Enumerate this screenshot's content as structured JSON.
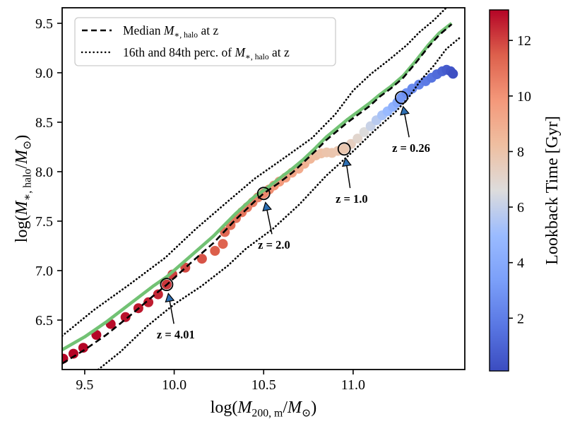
{
  "chart_data": {
    "type": "scatter",
    "title": "",
    "xlabel": "log($M$_{200, m}/$M$_{⊙})",
    "ylabel": "log($M$_{∗, halo}/$M$_{⊙})",
    "xlim": [
      9.374,
      11.624
    ],
    "ylim": [
      6.0,
      9.657
    ],
    "grid": false,
    "xticks": [
      {
        "v": 9.5,
        "label": "9.5"
      },
      {
        "v": 10.0,
        "label": "10.0"
      },
      {
        "v": 10.5,
        "label": "10.5"
      },
      {
        "v": 11.0,
        "label": "11.0"
      }
    ],
    "yticks": [
      {
        "v": 6.5,
        "label": "6.5"
      },
      {
        "v": 7.0,
        "label": "7.0"
      },
      {
        "v": 7.5,
        "label": "7.5"
      },
      {
        "v": 8.0,
        "label": "8.0"
      },
      {
        "v": 8.5,
        "label": "8.5"
      },
      {
        "v": 9.0,
        "label": "9.0"
      },
      {
        "v": 9.5,
        "label": "9.5"
      }
    ],
    "legend": {
      "position": "upper left",
      "items": [
        {
          "sample": "dashed",
          "label": "Median $M$_{∗, halo} at z"
        },
        {
          "sample": "dotted",
          "label": "16th and 84th perc. of $M$_{∗, halo} at z"
        }
      ]
    },
    "colorbar": {
      "label": "Lookback Time [Gyr]",
      "vmin": 0.1,
      "vmax": 13.1,
      "ticks": [
        {
          "v": 2,
          "label": "2"
        },
        {
          "v": 4,
          "label": "4"
        },
        {
          "v": 6,
          "label": "6"
        },
        {
          "v": 8,
          "label": "8"
        },
        {
          "v": 10,
          "label": "10"
        },
        {
          "v": 12,
          "label": "12"
        }
      ],
      "cmap": "coolwarm",
      "cmap_stops": [
        {
          "t": 0.0,
          "c": "#3b4cc0"
        },
        {
          "t": 0.125,
          "c": "#5977e3"
        },
        {
          "t": 0.25,
          "c": "#7b9ff9"
        },
        {
          "t": 0.375,
          "c": "#9abbff"
        },
        {
          "t": 0.5,
          "c": "#dddcdc"
        },
        {
          "t": 0.625,
          "c": "#efbfa1"
        },
        {
          "t": 0.75,
          "c": "#f4987a"
        },
        {
          "t": 0.875,
          "c": "#dd604c"
        },
        {
          "t": 1.0,
          "c": "#b40426"
        }
      ]
    },
    "series": [
      {
        "name": "median-mstar-halo",
        "style": "dashed",
        "color": "#000000",
        "width": 2.6,
        "points": [
          [
            9.374,
            6.06
          ],
          [
            9.5,
            6.2
          ],
          [
            9.62,
            6.35
          ],
          [
            9.75,
            6.54
          ],
          [
            9.88,
            6.74
          ],
          [
            9.96,
            6.86
          ],
          [
            10.1,
            7.09
          ],
          [
            10.22,
            7.28
          ],
          [
            10.34,
            7.51
          ],
          [
            10.45,
            7.7
          ],
          [
            10.5,
            7.78
          ],
          [
            10.58,
            7.88
          ],
          [
            10.66,
            7.99
          ],
          [
            10.72,
            8.09
          ],
          [
            10.79,
            8.21
          ],
          [
            10.85,
            8.32
          ],
          [
            10.91,
            8.41
          ],
          [
            10.97,
            8.5
          ],
          [
            11.03,
            8.58
          ],
          [
            11.09,
            8.66
          ],
          [
            11.15,
            8.76
          ],
          [
            11.21,
            8.84
          ],
          [
            11.28,
            8.95
          ],
          [
            11.35,
            9.1
          ],
          [
            11.42,
            9.26
          ],
          [
            11.48,
            9.38
          ],
          [
            11.55,
            9.49
          ]
        ]
      },
      {
        "name": "percentile-84",
        "style": "dotted",
        "color": "#000000",
        "width": 2.7,
        "points": [
          [
            9.374,
            6.34
          ],
          [
            9.55,
            6.6
          ],
          [
            9.75,
            6.86
          ],
          [
            9.95,
            7.13
          ],
          [
            10.12,
            7.42
          ],
          [
            10.3,
            7.7
          ],
          [
            10.45,
            7.93
          ],
          [
            10.6,
            8.12
          ],
          [
            10.77,
            8.34
          ],
          [
            10.9,
            8.58
          ],
          [
            11.0,
            8.82
          ],
          [
            11.1,
            8.99
          ],
          [
            11.2,
            9.13
          ],
          [
            11.3,
            9.28
          ],
          [
            11.37,
            9.41
          ],
          [
            11.45,
            9.53
          ],
          [
            11.52,
            9.657
          ]
        ]
      },
      {
        "name": "percentile-16",
        "style": "dotted",
        "color": "#000000",
        "width": 2.7,
        "points": [
          [
            9.576,
            6.0
          ],
          [
            9.7,
            6.18
          ],
          [
            9.85,
            6.44
          ],
          [
            10.0,
            6.66
          ],
          [
            10.15,
            6.84
          ],
          [
            10.3,
            7.05
          ],
          [
            10.4,
            7.22
          ],
          [
            10.55,
            7.42
          ],
          [
            10.7,
            7.67
          ],
          [
            10.85,
            7.96
          ],
          [
            10.99,
            8.19
          ],
          [
            11.11,
            8.4
          ],
          [
            11.24,
            8.61
          ],
          [
            11.31,
            8.75
          ],
          [
            11.38,
            8.93
          ],
          [
            11.45,
            9.07
          ],
          [
            11.52,
            9.24
          ],
          [
            11.6,
            9.36
          ]
        ]
      },
      {
        "name": "galaxy-growth-track",
        "style": "solid",
        "color": "#72c274",
        "width": 4.6,
        "points": [
          [
            9.374,
            6.2
          ],
          [
            9.5,
            6.33
          ],
          [
            9.62,
            6.48
          ],
          [
            9.75,
            6.66
          ],
          [
            9.88,
            6.84
          ],
          [
            9.96,
            6.94
          ],
          [
            10.1,
            7.16
          ],
          [
            10.22,
            7.35
          ],
          [
            10.34,
            7.57
          ],
          [
            10.45,
            7.75
          ],
          [
            10.5,
            7.81
          ],
          [
            10.58,
            7.92
          ],
          [
            10.66,
            8.03
          ],
          [
            10.72,
            8.12
          ],
          [
            10.79,
            8.24
          ],
          [
            10.85,
            8.35
          ],
          [
            10.91,
            8.44
          ],
          [
            10.97,
            8.53
          ],
          [
            11.03,
            8.61
          ],
          [
            11.09,
            8.69
          ],
          [
            11.15,
            8.78
          ],
          [
            11.21,
            8.86
          ],
          [
            11.28,
            8.97
          ],
          [
            11.35,
            9.12
          ],
          [
            11.42,
            9.28
          ],
          [
            11.48,
            9.4
          ],
          [
            11.55,
            9.5
          ]
        ]
      }
    ],
    "scatter": {
      "name": "galaxy-snapshots",
      "marker_radius": 7,
      "columns": [
        "log_M200m",
        "log_Mstar_halo",
        "lookback_gyr"
      ],
      "points": [
        [
          9.38,
          6.11,
          13.25
        ],
        [
          9.437,
          6.16,
          13.2
        ],
        [
          9.492,
          6.22,
          13.15
        ],
        [
          9.565,
          6.35,
          13.05
        ],
        [
          9.645,
          6.46,
          12.95
        ],
        [
          9.728,
          6.53,
          12.85
        ],
        [
          9.8,
          6.62,
          12.75
        ],
        [
          9.856,
          6.68,
          12.65
        ],
        [
          9.91,
          6.76,
          12.5
        ],
        [
          9.958,
          6.86,
          12.2
        ],
        [
          9.99,
          6.96,
          12.05
        ],
        [
          10.062,
          7.03,
          11.9
        ],
        [
          10.155,
          7.12,
          11.7
        ],
        [
          10.228,
          7.2,
          11.5
        ],
        [
          10.272,
          7.27,
          11.35
        ],
        [
          10.283,
          7.39,
          11.2
        ],
        [
          10.315,
          7.46,
          11.05
        ],
        [
          10.345,
          7.53,
          10.95
        ],
        [
          10.378,
          7.59,
          10.85
        ],
        [
          10.408,
          7.64,
          10.7
        ],
        [
          10.438,
          7.69,
          10.6
        ],
        [
          10.468,
          7.74,
          10.5
        ],
        [
          10.5,
          7.78,
          10.35
        ],
        [
          10.53,
          7.82,
          10.15
        ],
        [
          10.558,
          7.86,
          9.95
        ],
        [
          10.588,
          7.9,
          9.75
        ],
        [
          10.622,
          7.94,
          9.55
        ],
        [
          10.658,
          7.99,
          9.3
        ],
        [
          10.695,
          8.03,
          9.05
        ],
        [
          10.728,
          8.08,
          8.8
        ],
        [
          10.76,
          8.13,
          8.55
        ],
        [
          10.792,
          8.165,
          8.3
        ],
        [
          10.822,
          8.185,
          8.1
        ],
        [
          10.852,
          8.195,
          7.95
        ],
        [
          10.882,
          8.19,
          7.9
        ],
        [
          10.915,
          8.21,
          7.85
        ],
        [
          10.95,
          8.23,
          7.8
        ],
        [
          10.988,
          8.28,
          7.4
        ],
        [
          11.025,
          8.335,
          7.0
        ],
        [
          11.062,
          8.4,
          6.6
        ],
        [
          11.098,
          8.46,
          6.1
        ],
        [
          11.13,
          8.52,
          5.7
        ],
        [
          11.162,
          8.57,
          5.3
        ],
        [
          11.192,
          8.61,
          4.9
        ],
        [
          11.222,
          8.655,
          4.4
        ],
        [
          11.247,
          8.7,
          3.8
        ],
        [
          11.27,
          8.75,
          3.1
        ],
        [
          11.298,
          8.795,
          2.8
        ],
        [
          11.33,
          8.84,
          2.5
        ],
        [
          11.368,
          8.88,
          2.2
        ],
        [
          11.405,
          8.915,
          1.9
        ],
        [
          11.438,
          8.95,
          1.6
        ],
        [
          11.468,
          8.985,
          1.3
        ],
        [
          11.498,
          9.015,
          1.0
        ],
        [
          11.522,
          9.03,
          0.7
        ],
        [
          11.545,
          9.015,
          0.45
        ],
        [
          11.558,
          8.99,
          0.25
        ]
      ]
    },
    "annotations": {
      "arrow_color": "#2e6fb2",
      "marker_circle_color": "#000000",
      "items": [
        {
          "label": "z = 4.01",
          "point": [
            9.958,
            6.86
          ],
          "text": [
            10.009,
            6.357
          ]
        },
        {
          "label": "z = 2.0",
          "point": [
            10.5,
            7.78
          ],
          "text": [
            10.558,
            7.264
          ]
        },
        {
          "label": "z = 1.0",
          "point": [
            10.95,
            8.23
          ],
          "text": [
            10.992,
            7.729
          ]
        },
        {
          "label": "z = 0.26",
          "point": [
            11.27,
            8.75
          ],
          "text": [
            11.324,
            8.243
          ]
        }
      ]
    }
  }
}
